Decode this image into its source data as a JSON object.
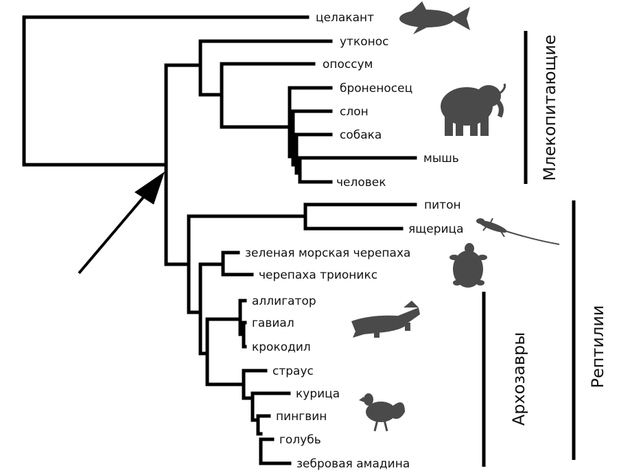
{
  "taxa": {
    "coelacanth": "целакант",
    "platypus": "утконос",
    "opossum": "опоссум",
    "armadillo": "броненосец",
    "elephant": "слон",
    "dog": "собака",
    "mouse": "мышь",
    "human": "человек",
    "python": "питон",
    "lizard": "ящерица",
    "green_turtle": "зеленая морская черепаха",
    "softshell_turtle": "черепаха трионикс",
    "alligator": "аллигатор",
    "gavial": "гавиал",
    "crocodile": "крокодил",
    "ostrich": "страус",
    "chicken": "курица",
    "penguin": "пингвин",
    "pigeon": "голубь",
    "zebra_finch": "зебровая амадина"
  },
  "groups": {
    "mammals": "Млекопитающие",
    "reptiles": "Рептилии",
    "archosaurs": "Архозавры"
  },
  "icons": [
    "coelacanth-icon",
    "elephant-icon",
    "lizard-icon",
    "turtle-icon",
    "crocodile-icon",
    "rooster-icon",
    "arrow-icon"
  ],
  "colors": {
    "lines": "#000000",
    "silhouettes": "#4a4a4a"
  }
}
